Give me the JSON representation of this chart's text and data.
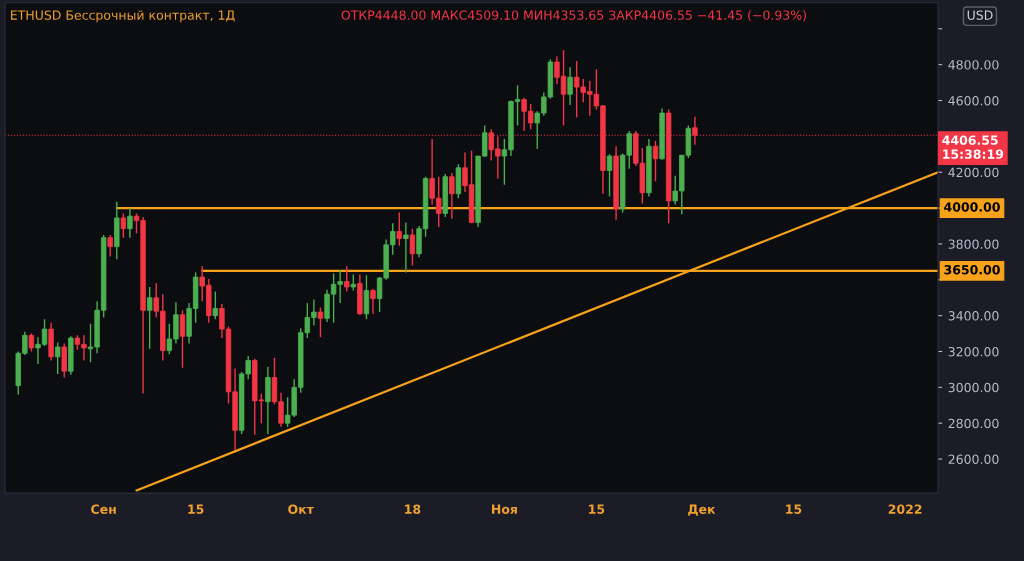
{
  "chart_data": {
    "type": "candlestick",
    "title": "ETHUSD Бессрочный контракт, 1Д",
    "subtitle": "ОТКР4448.00 МАКС4509.10 МИН4353.65 ЗАКР4406.55 −41.45 (−0.93%)",
    "xlim": [
      "2021-08-17",
      "2022-01-06"
    ],
    "xticks": [
      {
        "value": "2021-09-01",
        "label": "Сен"
      },
      {
        "value": "2021-09-15",
        "label": "15"
      },
      {
        "value": "2021-10-01",
        "label": "Окт"
      },
      {
        "value": "2021-10-18",
        "label": "18"
      },
      {
        "value": "2021-11-01",
        "label": "Ноя"
      },
      {
        "value": "2021-11-15",
        "label": "15"
      },
      {
        "value": "2021-12-01",
        "label": "Дек"
      },
      {
        "value": "2021-12-15",
        "label": "15"
      },
      {
        "value": "2022-01-01",
        "label": "2022"
      }
    ],
    "ylim": [
      2410,
      5145
    ],
    "yticks": [
      {
        "value": 2600,
        "label": "2600.00"
      },
      {
        "value": 2800,
        "label": "2800.00"
      },
      {
        "value": 3000,
        "label": "3000.00"
      },
      {
        "value": 3200,
        "label": "3200.00"
      },
      {
        "value": 3400,
        "label": "3400.00"
      },
      {
        "value": 3600,
        "label": null
      },
      {
        "value": 3800,
        "label": "3800.00"
      },
      {
        "value": 4000,
        "label": null
      },
      {
        "value": 4200,
        "label": "4200.00"
      },
      {
        "value": 4400,
        "label": null
      },
      {
        "value": 4600,
        "label": "4600.00"
      },
      {
        "value": 4800,
        "label": "4800.00"
      },
      {
        "value": 5000,
        "label": null
      }
    ],
    "series": [
      {
        "color": "#4caf50",
        "x": [
          "2021-08-19",
          "2021-08-20",
          "2021-08-22",
          "2021-08-23",
          "2021-08-25",
          "2021-08-27",
          "2021-08-30",
          "2021-08-31",
          "2021-09-01",
          "2021-09-03",
          "2021-09-05",
          "2021-09-08",
          "2021-09-11",
          "2021-09-12",
          "2021-09-14",
          "2021-09-15",
          "2021-09-18",
          "2021-09-22",
          "2021-09-23",
          "2021-09-26",
          "2021-09-29",
          "2021-09-30",
          "2021-10-01",
          "2021-10-02",
          "2021-10-03",
          "2021-10-05",
          "2021-10-06",
          "2021-10-07",
          "2021-10-09",
          "2021-10-11",
          "2021-10-13",
          "2021-10-14",
          "2021-10-15",
          "2021-10-17",
          "2021-10-19",
          "2021-10-20",
          "2021-10-23",
          "2021-10-25",
          "2021-10-28",
          "2021-10-29",
          "2021-11-01",
          "2021-11-02",
          "2021-11-03",
          "2021-11-06",
          "2021-11-07",
          "2021-11-08",
          "2021-11-11",
          "2021-11-17",
          "2021-11-19",
          "2021-11-20",
          "2021-11-23",
          "2021-11-25",
          "2021-11-27",
          "2021-11-28",
          "2021-11-29"
        ],
        "ohlc": [
          [
            3010,
            3200,
            2960,
            3190
          ],
          [
            3190,
            3310,
            3180,
            3290
          ],
          [
            3220,
            3280,
            3130,
            3240
          ],
          [
            3240,
            3380,
            3230,
            3325
          ],
          [
            3170,
            3250,
            3075,
            3225
          ],
          [
            3090,
            3285,
            3070,
            3275
          ],
          [
            3215,
            3355,
            3140,
            3225
          ],
          [
            3225,
            3480,
            3190,
            3430
          ],
          [
            3430,
            3850,
            3390,
            3835
          ],
          [
            3785,
            4035,
            3715,
            3945
          ],
          [
            3885,
            4000,
            3835,
            3955
          ],
          [
            3430,
            3560,
            3215,
            3500
          ],
          [
            3205,
            3355,
            3185,
            3270
          ],
          [
            3270,
            3475,
            3245,
            3405
          ],
          [
            3285,
            3470,
            3245,
            3440
          ],
          [
            3440,
            3640,
            3360,
            3615
          ],
          [
            3400,
            3535,
            3380,
            3440
          ],
          [
            2760,
            3085,
            2740,
            3075
          ],
          [
            3075,
            3175,
            3045,
            3150
          ],
          [
            2920,
            3115,
            2740,
            3055
          ],
          [
            2800,
            2945,
            2780,
            2845
          ],
          [
            2845,
            3045,
            2835,
            3000
          ],
          [
            3000,
            3330,
            2970,
            3305
          ],
          [
            3305,
            3470,
            3275,
            3390
          ],
          [
            3390,
            3490,
            3345,
            3420
          ],
          [
            3385,
            3545,
            3365,
            3520
          ],
          [
            3520,
            3635,
            3360,
            3575
          ],
          [
            3575,
            3655,
            3470,
            3590
          ],
          [
            3560,
            3630,
            3540,
            3575
          ],
          [
            3410,
            3625,
            3380,
            3540
          ],
          [
            3495,
            3615,
            3420,
            3610
          ],
          [
            3610,
            3825,
            3600,
            3795
          ],
          [
            3795,
            3915,
            3740,
            3870
          ],
          [
            3830,
            3920,
            3640,
            3850
          ],
          [
            3745,
            3900,
            3725,
            3885
          ],
          [
            3885,
            4175,
            3840,
            4165
          ],
          [
            3970,
            4190,
            3950,
            4175
          ],
          [
            4080,
            4245,
            4055,
            4225
          ],
          [
            3920,
            4290,
            3895,
            4290
          ],
          [
            4290,
            4460,
            4285,
            4420
          ],
          [
            4290,
            4385,
            4130,
            4325
          ],
          [
            4325,
            4600,
            4290,
            4595
          ],
          [
            4595,
            4685,
            4460,
            4605
          ],
          [
            4475,
            4540,
            4330,
            4530
          ],
          [
            4530,
            4645,
            4515,
            4620
          ],
          [
            4620,
            4830,
            4610,
            4815
          ],
          [
            4635,
            4785,
            4575,
            4730
          ],
          [
            4210,
            4300,
            4065,
            4290
          ],
          [
            3995,
            4305,
            3975,
            4295
          ],
          [
            4295,
            4430,
            4220,
            4415
          ],
          [
            4085,
            4385,
            4065,
            4345
          ],
          [
            4275,
            4555,
            4270,
            4530
          ],
          [
            4040,
            4180,
            4020,
            4095
          ],
          [
            4095,
            4295,
            3965,
            4295
          ],
          [
            4295,
            4460,
            4280,
            4445
          ]
        ]
      },
      {
        "color": "#f23645",
        "x": [
          "2021-08-21",
          "2021-08-24",
          "2021-08-26",
          "2021-08-28",
          "2021-08-29",
          "2021-09-02",
          "2021-09-04",
          "2021-09-06",
          "2021-09-07",
          "2021-09-09",
          "2021-09-10",
          "2021-09-13",
          "2021-09-16",
          "2021-09-17",
          "2021-09-19",
          "2021-09-20",
          "2021-09-21",
          "2021-09-24",
          "2021-09-25",
          "2021-09-27",
          "2021-09-28",
          "2021-10-04",
          "2021-10-08",
          "2021-10-10",
          "2021-10-12",
          "2021-10-16",
          "2021-10-18",
          "2021-10-21",
          "2021-10-22",
          "2021-10-24",
          "2021-10-26",
          "2021-10-27",
          "2021-10-30",
          "2021-10-31",
          "2021-11-04",
          "2021-11-05",
          "2021-11-09",
          "2021-11-10",
          "2021-11-12",
          "2021-11-13",
          "2021-11-14",
          "2021-11-15",
          "2021-11-16",
          "2021-11-18",
          "2021-11-21",
          "2021-11-22",
          "2021-11-24",
          "2021-11-26",
          "2021-11-30"
        ],
        "ohlc": [
          [
            3290,
            3300,
            3200,
            3220
          ],
          [
            3325,
            3360,
            3150,
            3170
          ],
          [
            3225,
            3245,
            3055,
            3090
          ],
          [
            3275,
            3290,
            3210,
            3240
          ],
          [
            3240,
            3290,
            3150,
            3220
          ],
          [
            3835,
            3850,
            3730,
            3785
          ],
          [
            3945,
            3970,
            3835,
            3885
          ],
          [
            3955,
            3970,
            3860,
            3930
          ],
          [
            3930,
            3950,
            2965,
            3430
          ],
          [
            3500,
            3580,
            3390,
            3425
          ],
          [
            3425,
            3520,
            3150,
            3205
          ],
          [
            3405,
            3430,
            3110,
            3285
          ],
          [
            3615,
            3675,
            3480,
            3565
          ],
          [
            3570,
            3605,
            3360,
            3400
          ],
          [
            3440,
            3465,
            3275,
            3325
          ],
          [
            3325,
            3340,
            2910,
            2975
          ],
          [
            2975,
            3105,
            2650,
            2760
          ],
          [
            3150,
            3160,
            2735,
            2925
          ],
          [
            2930,
            2965,
            2800,
            2925
          ],
          [
            3055,
            3165,
            2905,
            2920
          ],
          [
            2920,
            2970,
            2780,
            2800
          ],
          [
            3420,
            3445,
            3280,
            3385
          ],
          [
            3590,
            3675,
            3535,
            3560
          ],
          [
            3580,
            3630,
            3405,
            3410
          ],
          [
            3540,
            3550,
            3410,
            3495
          ],
          [
            3870,
            3975,
            3790,
            3830
          ],
          [
            3850,
            3885,
            3680,
            3745
          ],
          [
            4165,
            4385,
            4020,
            4055
          ],
          [
            4055,
            4175,
            3895,
            3970
          ],
          [
            4175,
            4195,
            3940,
            4080
          ],
          [
            4225,
            4310,
            4090,
            4125
          ],
          [
            4130,
            4320,
            3915,
            3920
          ],
          [
            4420,
            4440,
            4265,
            4325
          ],
          [
            4330,
            4400,
            4165,
            4290
          ],
          [
            4605,
            4615,
            4430,
            4540
          ],
          [
            4540,
            4580,
            4440,
            4475
          ],
          [
            4815,
            4845,
            4690,
            4730
          ],
          [
            4735,
            4880,
            4460,
            4635
          ],
          [
            4730,
            4820,
            4505,
            4675
          ],
          [
            4675,
            4720,
            4590,
            4645
          ],
          [
            4650,
            4710,
            4515,
            4635
          ],
          [
            4635,
            4775,
            4550,
            4570
          ],
          [
            4570,
            4575,
            4080,
            4210
          ],
          [
            4290,
            4345,
            3935,
            3995
          ],
          [
            4415,
            4430,
            4235,
            4250
          ],
          [
            4250,
            4335,
            4025,
            4085
          ],
          [
            4345,
            4375,
            4150,
            4275
          ],
          [
            4530,
            4550,
            3915,
            4040
          ],
          [
            4448,
            4509.1,
            4353.65,
            4406.55
          ]
        ]
      },
      {
        "type": "line",
        "color": "#f7a21b",
        "x": [
          "2021-09-03",
          "2022-01-06"
        ],
        "values": [
          4000,
          4000
        ]
      },
      {
        "type": "line",
        "color": "#f7a21b",
        "x": [
          "2021-09-16",
          "2022-01-06"
        ],
        "values": [
          3650,
          3650
        ]
      },
      {
        "type": "line",
        "color": "#f7a21b",
        "x": [
          "2021-09-06",
          "2022-01-06"
        ],
        "values": [
          2425,
          4200
        ]
      }
    ],
    "ref_lines": [
      {
        "axis": "y",
        "value": 4406.55,
        "label": "4406.55\n15:38:19",
        "color": "#f23645",
        "line_style": "dotted"
      }
    ],
    "annotations": [
      {
        "text": "4000.00",
        "x": "2022-01-06",
        "y": 4000
      },
      {
        "text": "3650.00",
        "x": "2022-01-06",
        "y": 3650
      },
      "USD"
    ]
  }
}
